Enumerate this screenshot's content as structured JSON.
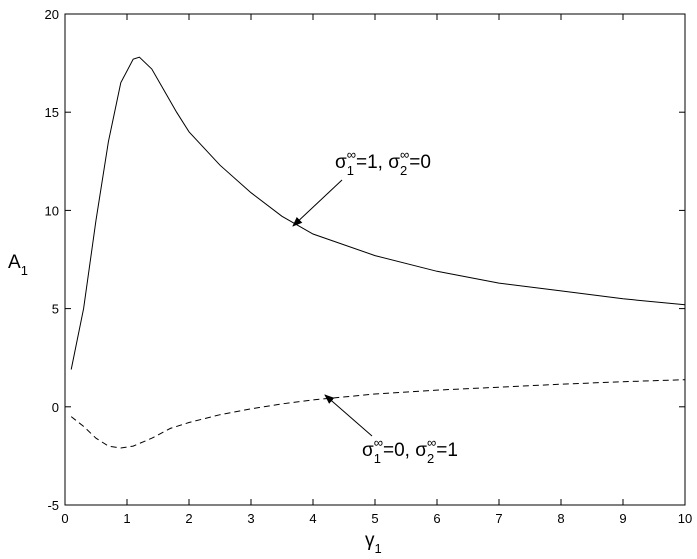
{
  "chart_data": {
    "type": "line",
    "xlabel": [
      "γ",
      "1"
    ],
    "ylabel": [
      "A",
      "1"
    ],
    "xlim": [
      0,
      10
    ],
    "xticks": [
      0,
      1,
      2,
      3,
      4,
      5,
      6,
      7,
      8,
      9,
      10
    ],
    "ylim": [
      -5,
      20
    ],
    "yticks": [
      -5,
      0,
      5,
      10,
      15,
      20
    ],
    "grid": false,
    "series": [
      {
        "color": "#000000",
        "dash": false,
        "x": [
          0.1,
          0.3,
          0.5,
          0.7,
          0.9,
          1.1,
          1.2,
          1.4,
          1.6,
          1.8,
          2,
          2.5,
          3,
          3.5,
          4,
          5,
          6,
          7,
          8,
          9,
          10
        ],
        "values": [
          1.9,
          5,
          9.5,
          13.5,
          16.5,
          17.7,
          17.8,
          17.2,
          16.1,
          15,
          14,
          12.3,
          10.9,
          9.7,
          8.8,
          7.7,
          6.9,
          6.3,
          5.9,
          5.5,
          5.2
        ]
      },
      {
        "color": "#000000",
        "dash": true,
        "x": [
          0.1,
          0.3,
          0.5,
          0.7,
          0.9,
          1.1,
          1.4,
          1.7,
          2,
          2.5,
          3,
          3.5,
          4,
          5,
          6,
          7,
          8,
          9,
          10
        ],
        "values": [
          -0.5,
          -1,
          -1.6,
          -2,
          -2.1,
          -2,
          -1.6,
          -1.1,
          -0.8,
          -0.4,
          -0.1,
          0.15,
          0.35,
          0.65,
          0.85,
          1.0,
          1.15,
          1.28,
          1.38
        ]
      }
    ],
    "annotations": [
      {
        "parts": [
          "σ",
          "1",
          "∞",
          "=1, σ",
          "2",
          "∞",
          "=0"
        ]
      },
      {
        "parts": [
          "σ",
          "1",
          "∞",
          "=0, σ",
          "2",
          "∞",
          "=1"
        ]
      }
    ]
  }
}
